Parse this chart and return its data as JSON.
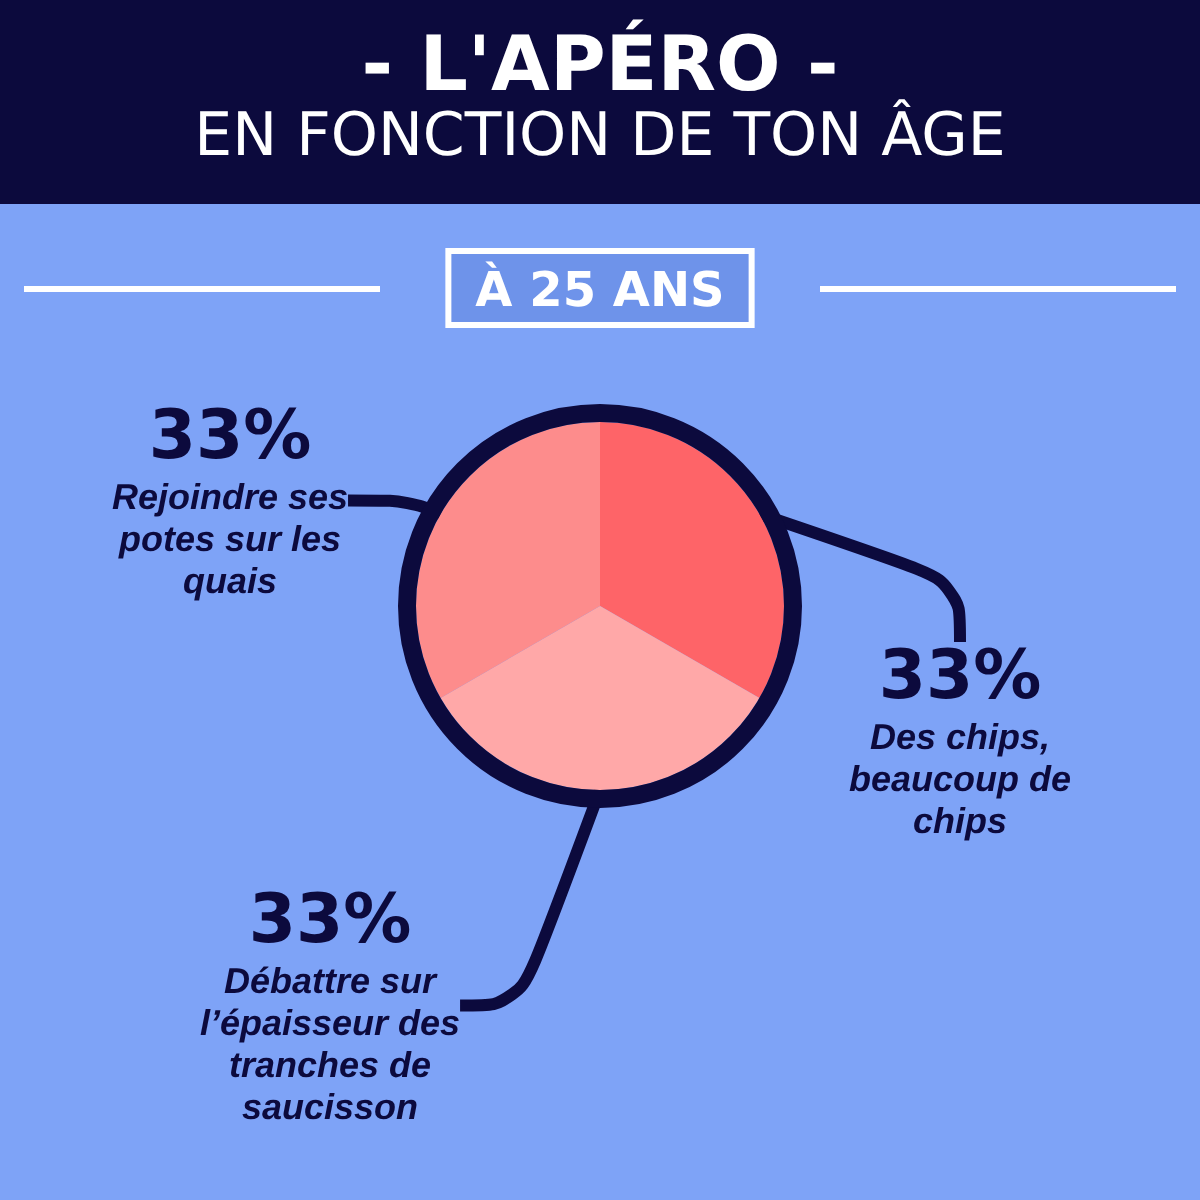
{
  "chart_data": {
    "type": "pie",
    "title": "- L'APÉRO -",
    "subtitle": "EN FONCTION DE TON ÂGE",
    "annotations": [
      "À 25 ANS"
    ],
    "categories": [
      "Des chips, beaucoup de chips",
      "Débattre sur l’épaisseur des tranches de saucisson",
      "Rejoindre ses potes sur les quais"
    ],
    "values": [
      33,
      33,
      33
    ],
    "value_labels": [
      "33%",
      "33%",
      "33%"
    ],
    "colors": [
      "#fe6468",
      "#ffa8a8",
      "#fd8c8c"
    ]
  }
}
